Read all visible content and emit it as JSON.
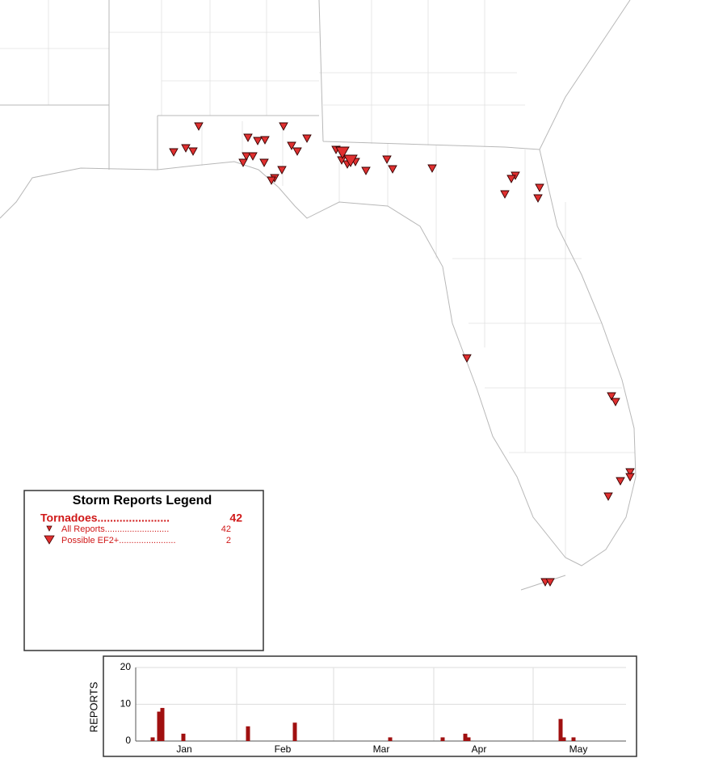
{
  "legend": {
    "title": "Storm Reports Legend",
    "category": {
      "label": "Tornadoes.......................",
      "count": 42
    },
    "items": [
      {
        "label": "All Reports..........................",
        "count": 42
      },
      {
        "label": "Possible EF2+.......................",
        "count": 2
      }
    ]
  },
  "chart_data": {
    "type": "bar",
    "ylabel": "REPORTS",
    "xtick_labels": [
      "Jan",
      "Feb",
      "Mar",
      "Apr",
      "May"
    ],
    "values": [
      1,
      8,
      9,
      2,
      4,
      5,
      1,
      1,
      2,
      1,
      6,
      1,
      1
    ],
    "color": "#a01010",
    "ylim": [
      0,
      20
    ],
    "yticks": [
      0,
      10,
      20
    ],
    "grid": true
  }
}
